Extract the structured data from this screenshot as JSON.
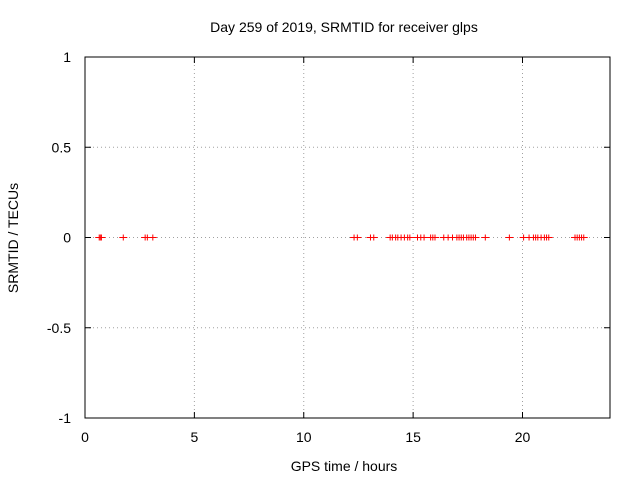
{
  "chart_data": {
    "type": "scatter",
    "title": "Day 259 of 2019, SRMTID for receiver glps",
    "xlabel": "GPS time / hours",
    "ylabel": "SRMTID / TECUs",
    "xlim": [
      0,
      24
    ],
    "ylim": [
      -1,
      1
    ],
    "xticks": [
      0,
      5,
      10,
      15,
      20
    ],
    "xtick_labels": [
      "0",
      "5",
      "10",
      "15",
      "20"
    ],
    "yticks": [
      -1,
      -0.5,
      0,
      0.5,
      1
    ],
    "ytick_labels": [
      "-1",
      "-0.5",
      "0",
      "0.5",
      "1"
    ],
    "grid": true,
    "marker": "+",
    "series": [
      {
        "name": "SRMTID",
        "color": "#ff0000",
        "x": [
          0.65,
          0.7,
          0.75,
          1.75,
          2.75,
          2.85,
          3.1,
          12.3,
          12.45,
          13.05,
          13.2,
          13.95,
          14.05,
          14.2,
          14.3,
          14.45,
          14.6,
          14.75,
          14.85,
          15.2,
          15.35,
          15.5,
          15.8,
          15.9,
          16.0,
          16.4,
          16.6,
          16.8,
          17.0,
          17.1,
          17.2,
          17.3,
          17.45,
          17.55,
          17.65,
          17.75,
          17.85,
          18.3,
          19.4,
          20.05,
          20.3,
          20.5,
          20.6,
          20.7,
          20.85,
          21.0,
          21.1,
          21.2,
          22.4,
          22.5,
          22.6,
          22.7,
          22.8
        ],
        "y": [
          0,
          0,
          0,
          0,
          0,
          0,
          0,
          0,
          0,
          0,
          0,
          0,
          0,
          0,
          0,
          0,
          0,
          0,
          0,
          0,
          0,
          0,
          0,
          0,
          0,
          0,
          0,
          0,
          0,
          0,
          0,
          0,
          0,
          0,
          0,
          0,
          0,
          0,
          0,
          0,
          0,
          0,
          0,
          0,
          0,
          0,
          0,
          0,
          0,
          0,
          0,
          0,
          0
        ]
      }
    ]
  }
}
